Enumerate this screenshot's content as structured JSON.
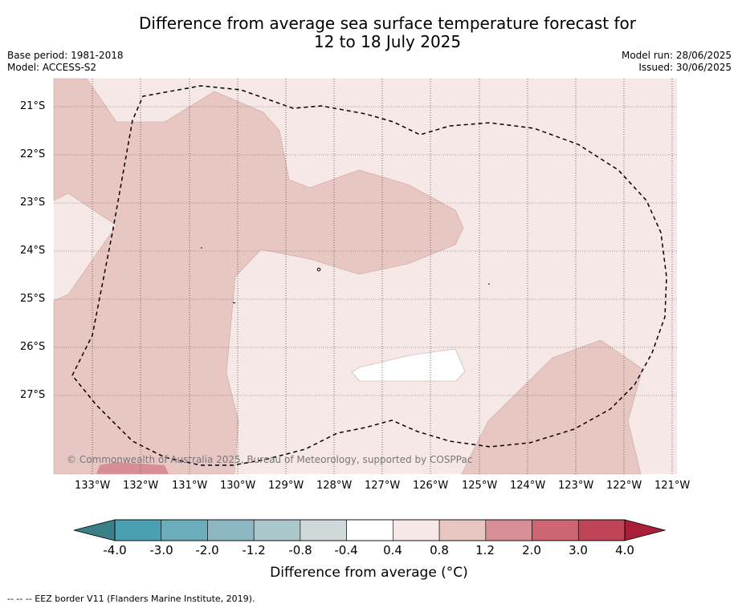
{
  "title_line1": "Difference from average sea surface temperature forecast for",
  "title_line2": "12 to 18 July 2025",
  "base_period": "Base period: 1981-2018",
  "model": "Model: ACCESS-S2",
  "model_run": "Model run: 28/06/2025",
  "issued": "Issued: 30/06/2025",
  "copyright": "© Commonwealth of Australia 2025, Bureau of Meteorology, supported by COSPPac",
  "lat_labels": [
    "21°S",
    "22°S",
    "23°S",
    "24°S",
    "25°S",
    "26°S",
    "27°S"
  ],
  "lon_labels": [
    "133°W",
    "132°W",
    "131°W",
    "130°W",
    "129°W",
    "128°W",
    "127°W",
    "126°W",
    "125°W",
    "124°W",
    "123°W",
    "122°W",
    "121°W"
  ],
  "colorbar": {
    "ticks": [
      "-4.0",
      "-3.0",
      "-2.0",
      "-1.2",
      "-0.8",
      "-0.4",
      "0.4",
      "0.8",
      "1.2",
      "2.0",
      "3.0",
      "4.0"
    ],
    "colors": [
      "#4aa0b1",
      "#6cadbb",
      "#8db8c3",
      "#aac7cb",
      "#d0d9da",
      "#ffffff",
      "#f5e8e6",
      "#e8c6c2",
      "#d88e96",
      "#cc6670",
      "#bf4456"
    ],
    "low_extend_color": "#3b7f88",
    "high_extend_color": "#ab1e3a",
    "label": "Difference from average (°C)"
  },
  "footnote": "--  --  -- EEZ border V11 (Flanders Marine Institute, 2019).",
  "map_colors": {
    "bg_0_4_0_8": "#f5e8e6",
    "zone_0_8_1_2": "#e8c6c2",
    "zone_1_2_2_0": "#d88e96",
    "zone_neutral": "#ffffff"
  }
}
